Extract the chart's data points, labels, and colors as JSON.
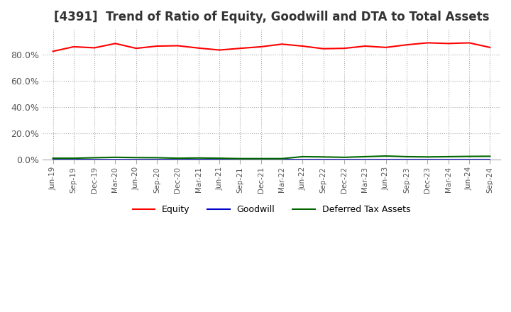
{
  "title": "[4391]  Trend of Ratio of Equity, Goodwill and DTA to Total Assets",
  "title_fontsize": 12,
  "ylim": [
    0,
    100
  ],
  "yticks": [
    0,
    20,
    40,
    60,
    80
  ],
  "yticklabels": [
    "0.0%",
    "20.0%",
    "40.0%",
    "60.0%",
    "80.0%"
  ],
  "x_labels": [
    "Jun-19",
    "Sep-19",
    "Dec-19",
    "Mar-20",
    "Jun-20",
    "Sep-20",
    "Dec-20",
    "Mar-21",
    "Jun-21",
    "Sep-21",
    "Dec-21",
    "Mar-22",
    "Jun-22",
    "Sep-22",
    "Dec-22",
    "Mar-23",
    "Jun-23",
    "Sep-23",
    "Dec-23",
    "Mar-24",
    "Jun-24",
    "Sep-24"
  ],
  "equity": [
    82.5,
    86.0,
    85.2,
    88.5,
    84.8,
    86.5,
    86.8,
    85.0,
    83.5,
    84.8,
    86.0,
    88.0,
    86.5,
    84.5,
    84.8,
    86.5,
    85.5,
    87.5,
    89.0,
    88.5,
    89.0,
    85.5
  ],
  "goodwill": [
    0.0,
    0.0,
    0.0,
    0.0,
    0.0,
    0.0,
    0.0,
    0.0,
    0.0,
    0.0,
    0.0,
    0.0,
    0.0,
    0.0,
    0.0,
    0.0,
    0.0,
    0.0,
    0.0,
    0.0,
    0.0,
    0.0
  ],
  "dta": [
    0.8,
    0.8,
    1.2,
    1.5,
    1.3,
    1.2,
    0.8,
    1.0,
    0.8,
    0.5,
    0.5,
    0.5,
    2.0,
    1.8,
    1.5,
    2.0,
    2.5,
    2.0,
    1.8,
    2.0,
    2.2,
    2.3
  ],
  "equity_color": "#ff0000",
  "goodwill_color": "#0000cc",
  "dta_color": "#006600",
  "background_color": "#ffffff",
  "grid_color": "#aaaaaa",
  "linewidth": 1.5
}
